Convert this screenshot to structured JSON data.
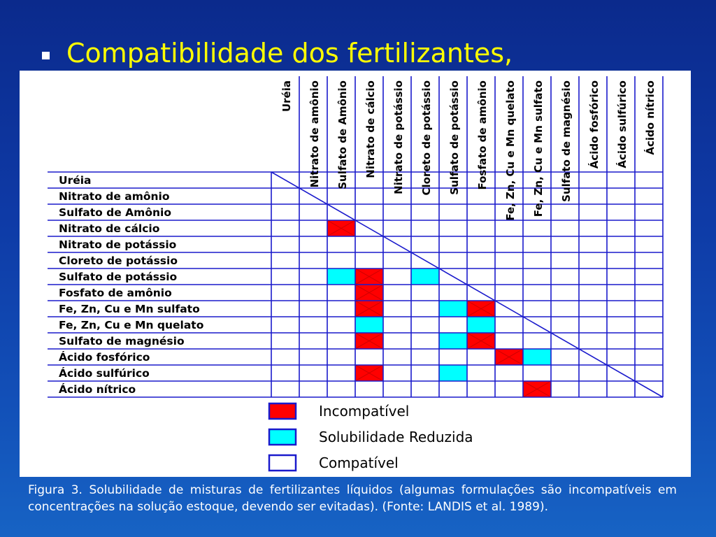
{
  "slide": {
    "title": "Compatibilidade dos fertilizantes,",
    "caption": "Figura 3. Solubilidade de misturas de fertilizantes líquidos (algumas formulações são incompatíveis em concentrações na solução estoque, devendo ser evitadas). (Fonte: LANDIS et al. 1989)."
  },
  "matrix": {
    "columns": [
      "Uréia",
      "Nitrato de amônio",
      "Sulfato de Amônio",
      "Nitrato de cálcio",
      "Nitrato de potássio",
      "Cloreto de potássio",
      "Sulfato de potássio",
      "Fosfato de amônio",
      "Fe, Zn, Cu e Mn quelato",
      "Fe, Zn, Cu e Mn sulfato",
      "Sulfato de magnésio",
      "Ácido fosfórico",
      "Ácido sulfúrico",
      "Ácido nítrico"
    ],
    "rows": [
      "Uréia",
      "Nitrato de amônio",
      "Sulfato de Amônio",
      "Nitrato de cálcio",
      "Nitrato de potássio",
      "Cloreto de potássio",
      "Sulfato de potássio",
      "Fosfato de amônio",
      "Fe, Zn, Cu e Mn sulfato",
      "Fe, Zn, Cu e Mn quelato",
      "Sulfato de magnésio",
      "Ácido fosfórico",
      "Ácido sulfúrico",
      "Ácido nítrico"
    ],
    "cells": [
      {
        "row": 3,
        "col": 2,
        "status": "incompatible"
      },
      {
        "row": 6,
        "col": 2,
        "status": "reduced"
      },
      {
        "row": 6,
        "col": 3,
        "status": "incompatible"
      },
      {
        "row": 6,
        "col": 5,
        "status": "reduced"
      },
      {
        "row": 7,
        "col": 3,
        "status": "incompatible"
      },
      {
        "row": 8,
        "col": 3,
        "status": "incompatible"
      },
      {
        "row": 8,
        "col": 6,
        "status": "reduced"
      },
      {
        "row": 8,
        "col": 7,
        "status": "incompatible"
      },
      {
        "row": 9,
        "col": 3,
        "status": "reduced"
      },
      {
        "row": 9,
        "col": 7,
        "status": "reduced"
      },
      {
        "row": 10,
        "col": 3,
        "status": "incompatible"
      },
      {
        "row": 10,
        "col": 6,
        "status": "reduced"
      },
      {
        "row": 10,
        "col": 7,
        "status": "incompatible"
      },
      {
        "row": 11,
        "col": 8,
        "status": "incompatible"
      },
      {
        "row": 11,
        "col": 9,
        "status": "reduced"
      },
      {
        "row": 12,
        "col": 3,
        "status": "incompatible"
      },
      {
        "row": 12,
        "col": 6,
        "status": "reduced"
      },
      {
        "row": 13,
        "col": 9,
        "status": "incompatible"
      }
    ]
  },
  "legend": [
    {
      "status": "incompatible",
      "label": "Incompatível"
    },
    {
      "status": "reduced",
      "label": "Solubilidade Reduzida"
    },
    {
      "status": "compatible",
      "label": "Compatível"
    }
  ],
  "colors": {
    "incompatible": "#ff0000",
    "reduced": "#00ffff",
    "compatible": "#ffffff",
    "grid": "#1a1acc",
    "title": "#ffff00"
  }
}
